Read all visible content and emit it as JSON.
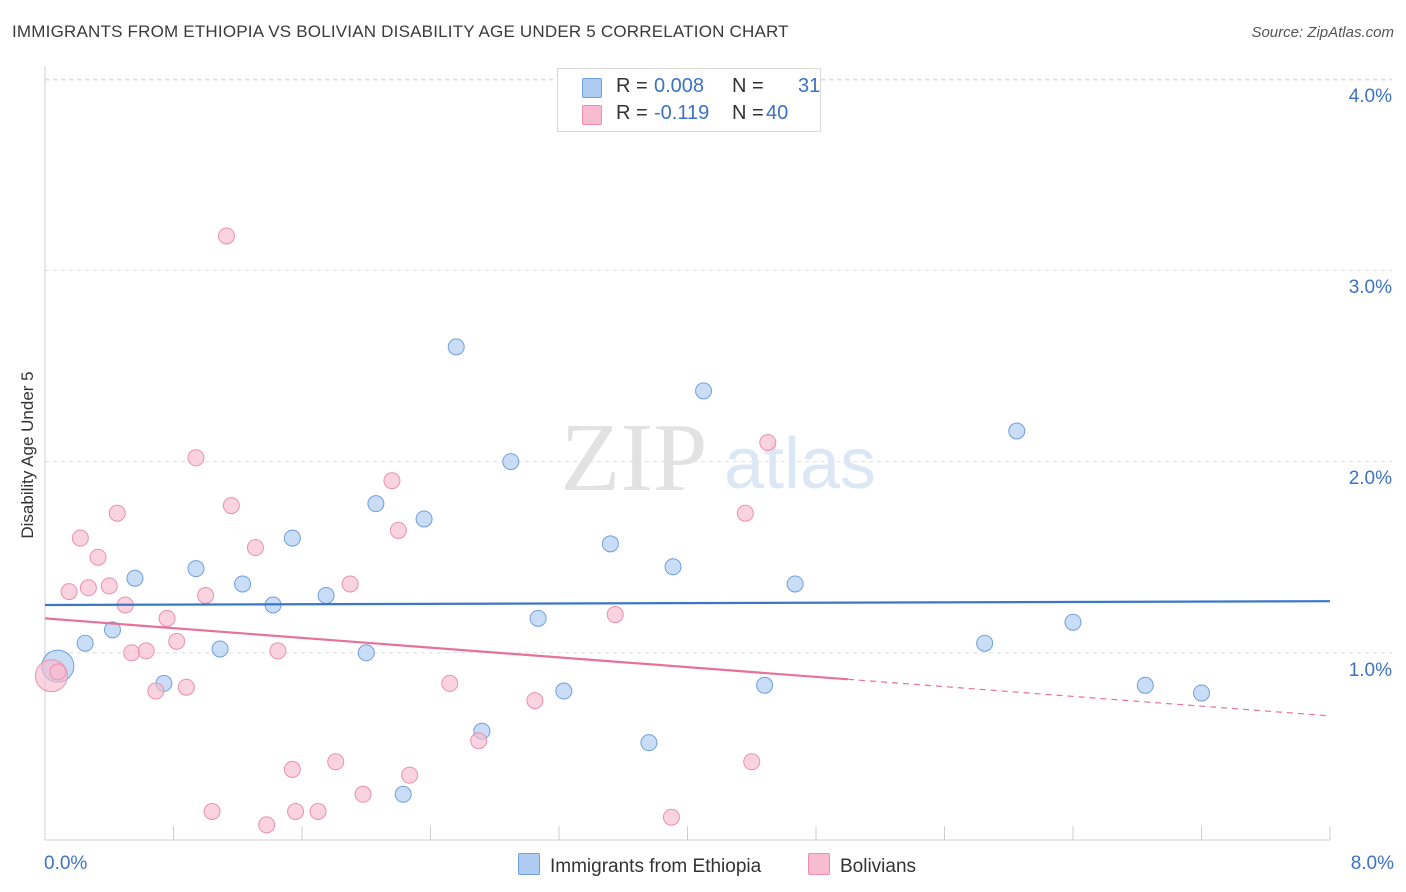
{
  "title": "IMMIGRANTS FROM ETHIOPIA VS BOLIVIAN DISABILITY AGE UNDER 5 CORRELATION CHART",
  "source": "Source: ZipAtlas.com",
  "watermark": {
    "zip": "ZIP",
    "atlas": "atlas"
  },
  "stats": [
    {
      "r_label": "R =",
      "r_value": "0.008",
      "n_label": "N =",
      "n_value": "31",
      "color": "#aecbf2"
    },
    {
      "r_label": "R =",
      "r_value": "-0.119",
      "n_label": "N =",
      "n_value": "40",
      "color": "#f7bccf"
    }
  ],
  "legend": [
    {
      "label": "Immigrants from Ethiopia",
      "color": "#aecbf2"
    },
    {
      "label": "Bolivians",
      "color": "#f7bccf"
    }
  ],
  "chart_data": {
    "type": "scatter",
    "title": "IMMIGRANTS FROM ETHIOPIA VS BOLIVIAN DISABILITY AGE UNDER 5 CORRELATION CHART",
    "xlabel": "",
    "ylabel": "Disability Age Under 5",
    "xlim": [
      0,
      8
    ],
    "ylim": [
      0,
      4.1
    ],
    "x_tick_labels": [
      "0.0%",
      "8.0%"
    ],
    "y_ticks": [
      1,
      2,
      3,
      4
    ],
    "y_tick_labels": [
      "1.0%",
      "2.0%",
      "3.0%",
      "4.0%"
    ],
    "grid": true,
    "legend_position": "bottom",
    "series": [
      {
        "name": "Immigrants from Ethiopia",
        "color": "#aecbf2",
        "stroke": "#6f9fdc",
        "line_color": "#3a77c9",
        "trend": {
          "x": [
            0,
            8
          ],
          "y": [
            1.25,
            1.27
          ],
          "dashed_from": null
        },
        "points": [
          {
            "x": 0.08,
            "y": 0.93,
            "big": true
          },
          {
            "x": 0.25,
            "y": 1.05
          },
          {
            "x": 0.42,
            "y": 1.12
          },
          {
            "x": 0.56,
            "y": 1.39
          },
          {
            "x": 0.74,
            "y": 0.84
          },
          {
            "x": 0.94,
            "y": 1.44
          },
          {
            "x": 1.09,
            "y": 1.02
          },
          {
            "x": 1.23,
            "y": 1.36
          },
          {
            "x": 1.42,
            "y": 1.25
          },
          {
            "x": 1.54,
            "y": 1.6
          },
          {
            "x": 1.75,
            "y": 1.3
          },
          {
            "x": 2.0,
            "y": 1.0
          },
          {
            "x": 2.06,
            "y": 1.78
          },
          {
            "x": 2.23,
            "y": 0.26
          },
          {
            "x": 2.36,
            "y": 1.7
          },
          {
            "x": 2.56,
            "y": 2.6
          },
          {
            "x": 2.72,
            "y": 0.59
          },
          {
            "x": 2.9,
            "y": 2.0
          },
          {
            "x": 3.07,
            "y": 1.18
          },
          {
            "x": 3.23,
            "y": 0.8
          },
          {
            "x": 3.52,
            "y": 1.57
          },
          {
            "x": 3.76,
            "y": 0.53
          },
          {
            "x": 3.91,
            "y": 1.45
          },
          {
            "x": 4.1,
            "y": 2.37
          },
          {
            "x": 4.48,
            "y": 0.83
          },
          {
            "x": 4.67,
            "y": 1.36
          },
          {
            "x": 5.85,
            "y": 1.05
          },
          {
            "x": 6.05,
            "y": 2.16
          },
          {
            "x": 6.4,
            "y": 1.16
          },
          {
            "x": 6.85,
            "y": 0.83
          },
          {
            "x": 7.2,
            "y": 0.79
          }
        ]
      },
      {
        "name": "Bolivians",
        "color": "#f7bccf",
        "stroke": "#ec8fae",
        "line_color": "#e5729a",
        "trend": {
          "x": [
            0,
            8
          ],
          "y": [
            1.18,
            0.67
          ],
          "dashed_from": 5.0
        },
        "points": [
          {
            "x": 0.04,
            "y": 0.88,
            "big": true
          },
          {
            "x": 0.08,
            "y": 0.9
          },
          {
            "x": 0.15,
            "y": 1.32
          },
          {
            "x": 0.22,
            "y": 1.6
          },
          {
            "x": 0.27,
            "y": 1.34
          },
          {
            "x": 0.33,
            "y": 1.5
          },
          {
            "x": 0.4,
            "y": 1.35
          },
          {
            "x": 0.45,
            "y": 1.73
          },
          {
            "x": 0.5,
            "y": 1.25
          },
          {
            "x": 0.54,
            "y": 1.0
          },
          {
            "x": 0.63,
            "y": 1.01
          },
          {
            "x": 0.69,
            "y": 0.8
          },
          {
            "x": 0.76,
            "y": 1.18
          },
          {
            "x": 0.82,
            "y": 1.06
          },
          {
            "x": 0.88,
            "y": 0.82
          },
          {
            "x": 0.94,
            "y": 2.02
          },
          {
            "x": 1.0,
            "y": 1.3
          },
          {
            "x": 1.04,
            "y": 0.17
          },
          {
            "x": 1.13,
            "y": 3.18
          },
          {
            "x": 1.16,
            "y": 1.77
          },
          {
            "x": 1.31,
            "y": 1.55
          },
          {
            "x": 1.38,
            "y": 0.1
          },
          {
            "x": 1.45,
            "y": 1.01
          },
          {
            "x": 1.54,
            "y": 0.39
          },
          {
            "x": 1.56,
            "y": 0.17
          },
          {
            "x": 1.7,
            "y": 0.17
          },
          {
            "x": 1.81,
            "y": 0.43
          },
          {
            "x": 1.9,
            "y": 1.36
          },
          {
            "x": 1.98,
            "y": 0.26
          },
          {
            "x": 2.16,
            "y": 1.9
          },
          {
            "x": 2.2,
            "y": 1.64
          },
          {
            "x": 2.27,
            "y": 0.36
          },
          {
            "x": 2.52,
            "y": 0.84
          },
          {
            "x": 2.7,
            "y": 0.54
          },
          {
            "x": 3.05,
            "y": 0.75
          },
          {
            "x": 3.55,
            "y": 1.2
          },
          {
            "x": 3.9,
            "y": 0.14
          },
          {
            "x": 4.36,
            "y": 1.73
          },
          {
            "x": 4.4,
            "y": 0.43
          },
          {
            "x": 4.5,
            "y": 2.1
          }
        ]
      }
    ]
  }
}
